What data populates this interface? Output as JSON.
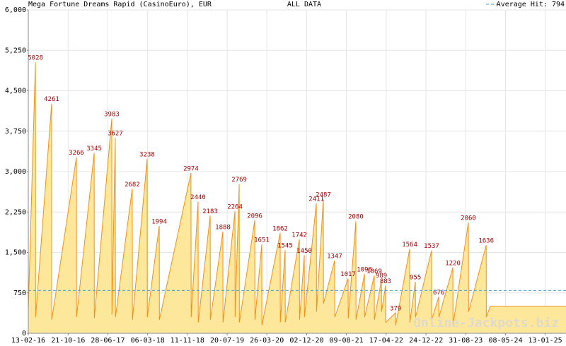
{
  "chart_data": {
    "type": "area",
    "title": "Mega Fortune Dreams Rapid (CasinoEuro), EUR",
    "subtitle": "ALL DATA",
    "watermark": "Online-Jackpots.biz",
    "color": "#f39016",
    "fill_color": "#fde79a",
    "label_color": "#a00000",
    "grid": true,
    "average": {
      "value": 794,
      "label": "Average Hit: 794",
      "color": "#4a9fd8"
    },
    "xlim": [
      "2016-02-13",
      "2025-05-24"
    ],
    "xticks": [
      {
        "value": "2016-02-13",
        "label": "13-02-16"
      },
      {
        "value": "2016-10-21",
        "label": "21-10-16"
      },
      {
        "value": "2017-06-28",
        "label": "28-06-17"
      },
      {
        "value": "2018-03-06",
        "label": "06-03-18"
      },
      {
        "value": "2018-11-11",
        "label": "11-11-18"
      },
      {
        "value": "2019-07-20",
        "label": "20-07-19"
      },
      {
        "value": "2020-03-26",
        "label": "26-03-20"
      },
      {
        "value": "2020-12-02",
        "label": "02-12-20"
      },
      {
        "value": "2021-08-09",
        "label": "09-08-21"
      },
      {
        "value": "2022-04-17",
        "label": "17-04-22"
      },
      {
        "value": "2022-12-24",
        "label": "24-12-22"
      },
      {
        "value": "2023-08-31",
        "label": "31-08-23"
      },
      {
        "value": "2024-05-08",
        "label": "08-05-24"
      },
      {
        "value": "2025-01-13",
        "label": "13-01-25"
      }
    ],
    "ylim": [
      0,
      6000
    ],
    "yticks": [
      0,
      750,
      {
        "value": 1500,
        "label": "1,500"
      },
      {
        "value": 2250,
        "label": "2,250"
      },
      {
        "value": 3000,
        "label": "3,000"
      },
      {
        "value": 3750,
        "label": "3,750"
      },
      {
        "value": 4500,
        "label": "4,500"
      },
      {
        "value": 5250,
        "label": "5,250"
      },
      {
        "value": 6000,
        "label": "6,000"
      }
    ],
    "x": [
      "2016-02-13",
      "2016-03-29",
      "2016-03-30",
      "2016-07-09",
      "2016-07-10",
      "2016-12-12",
      "2016-12-13",
      "2017-04-03",
      "2017-04-04",
      "2017-07-23",
      "2017-07-24",
      "2017-08-14",
      "2017-08-15",
      "2017-11-29",
      "2017-11-30",
      "2018-03-03",
      "2018-03-04",
      "2018-05-18",
      "2018-05-19",
      "2018-12-04",
      "2018-12-05",
      "2019-01-18",
      "2019-01-19",
      "2019-04-04",
      "2019-04-05",
      "2019-06-23",
      "2019-06-24",
      "2019-09-07",
      "2019-09-08",
      "2019-10-04",
      "2019-10-05",
      "2020-01-10",
      "2020-01-11",
      "2020-02-23",
      "2020-02-24",
      "2020-06-18",
      "2020-06-19",
      "2020-07-19",
      "2020-07-20",
      "2020-10-17",
      "2020-10-18",
      "2020-11-17",
      "2020-11-18",
      "2021-02-01",
      "2021-02-02",
      "2021-03-17",
      "2021-03-18",
      "2021-05-27",
      "2021-05-28",
      "2021-08-20",
      "2021-08-21",
      "2021-10-08",
      "2021-10-09",
      "2021-12-01",
      "2021-12-02",
      "2022-02-01",
      "2022-02-02",
      "2022-03-18",
      "2022-03-19",
      "2022-04-13",
      "2022-04-14",
      "2022-06-15",
      "2022-06-16",
      "2022-09-12",
      "2022-09-13",
      "2022-10-18",
      "2022-10-19",
      "2023-01-28",
      "2023-01-29",
      "2023-03-14",
      "2023-03-15",
      "2023-06-11",
      "2023-06-12",
      "2023-09-17",
      "2023-09-18",
      "2024-01-07",
      "2024-01-08",
      "2024-02-01",
      "2025-05-24"
    ],
    "values": [
      450,
      5028,
      300,
      4261,
      250,
      3266,
      300,
      3345,
      280,
      3983,
      350,
      3627,
      300,
      2682,
      250,
      3238,
      300,
      1994,
      250,
      2974,
      300,
      2440,
      200,
      2183,
      250,
      1888,
      200,
      2264,
      300,
      2769,
      200,
      2096,
      250,
      1651,
      150,
      1862,
      200,
      1545,
      200,
      1742,
      250,
      1450,
      300,
      2411,
      400,
      2487,
      550,
      1347,
      300,
      1017,
      276,
      2080,
      250,
      1098,
      300,
      1069,
      250,
      989,
      400,
      883,
      200,
      379,
      150,
      1564,
      200,
      955,
      298,
      1537,
      250,
      676,
      300,
      1220,
      150,
      2060,
      400,
      1636,
      300,
      500,
      500
    ]
  }
}
